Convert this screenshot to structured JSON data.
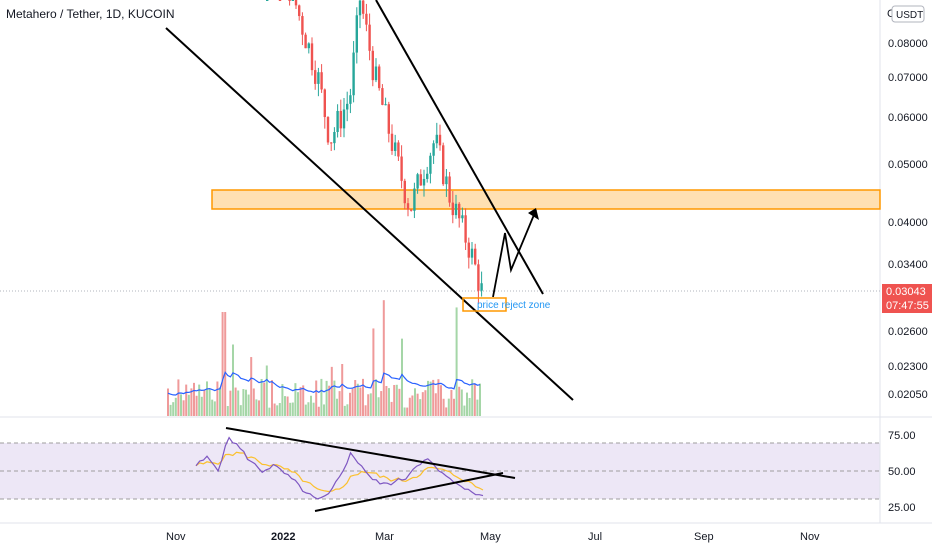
{
  "header": {
    "symbol_title": "Metahero / Tether, 1D, KUCOIN",
    "currency_badge": "USDT",
    "currency_cut": "C"
  },
  "colors": {
    "up": "#26a69a",
    "down": "#ef5350",
    "trendline": "#000000",
    "zone_fill": "#ffe0b2",
    "zone_border": "#ff9800",
    "volume_ma": "#2962ff",
    "rsi_line": "#7e57c2",
    "rsi_ma": "#fbc02d",
    "rsi_band": "#ede7f6",
    "price_label_bg": "#ef5350",
    "annotation_text": "#2196f3"
  },
  "price_axis": {
    "scale": "log",
    "tick_labels": [
      "0.08000",
      "0.07000",
      "0.06000",
      "0.05000",
      "0.04000",
      "0.03400",
      "0.02600",
      "0.02300",
      "0.02050"
    ],
    "current_price": "0.03043",
    "countdown": "07:47:55"
  },
  "rsi_axis": {
    "tick_labels": [
      "75.00",
      "50.00",
      "25.00"
    ]
  },
  "time_axis": {
    "tick_labels": [
      "Nov",
      "2022",
      "Mar",
      "May",
      "Jul",
      "Sep",
      "Nov"
    ]
  },
  "annotations": {
    "zone_label": "price reject zone"
  },
  "chart_data": [
    {
      "type": "candlestick",
      "title": "Metahero / Tether, 1D, KUCOIN",
      "x_dates": [
        "2021-12-17",
        "2022-01-15",
        "2022-02-15",
        "2022-03-01",
        "2022-03-15",
        "2022-04-01",
        "2022-04-15",
        "2022-04-26"
      ],
      "close_approx": [
        0.08,
        0.072,
        0.062,
        0.06,
        0.047,
        0.048,
        0.038,
        0.03043
      ],
      "current_price": 0.03043,
      "ylim": [
        0.019,
        0.095
      ],
      "resistance_zone": [
        0.0418,
        0.0455
      ],
      "scale": "log"
    },
    {
      "type": "bar",
      "title": "Volume",
      "series": [
        {
          "values": [
            22,
            18,
            45,
            30,
            12,
            60,
            35,
            40,
            25,
            90,
            28,
            15,
            20,
            55,
            33,
            18,
            22,
            38,
            30,
            25,
            16,
            14,
            20,
            12,
            10,
            14
          ]
        }
      ]
    },
    {
      "type": "line",
      "title": "RSI",
      "ylim": [
        20,
        85
      ],
      "series": [
        {
          "values": [
            55,
            62,
            52,
            80,
            70,
            58,
            50,
            55,
            48,
            40,
            30,
            24,
            28,
            45,
            65,
            55,
            42,
            38,
            40,
            44,
            56,
            60,
            50,
            42,
            38,
            30,
            28
          ]
        },
        {
          "values": [
            55,
            57,
            58,
            65,
            66,
            62,
            57,
            55,
            52,
            47,
            40,
            33,
            30,
            34,
            44,
            50,
            48,
            44,
            42,
            42,
            46,
            52,
            52,
            48,
            44,
            38,
            33
          ]
        }
      ]
    }
  ]
}
